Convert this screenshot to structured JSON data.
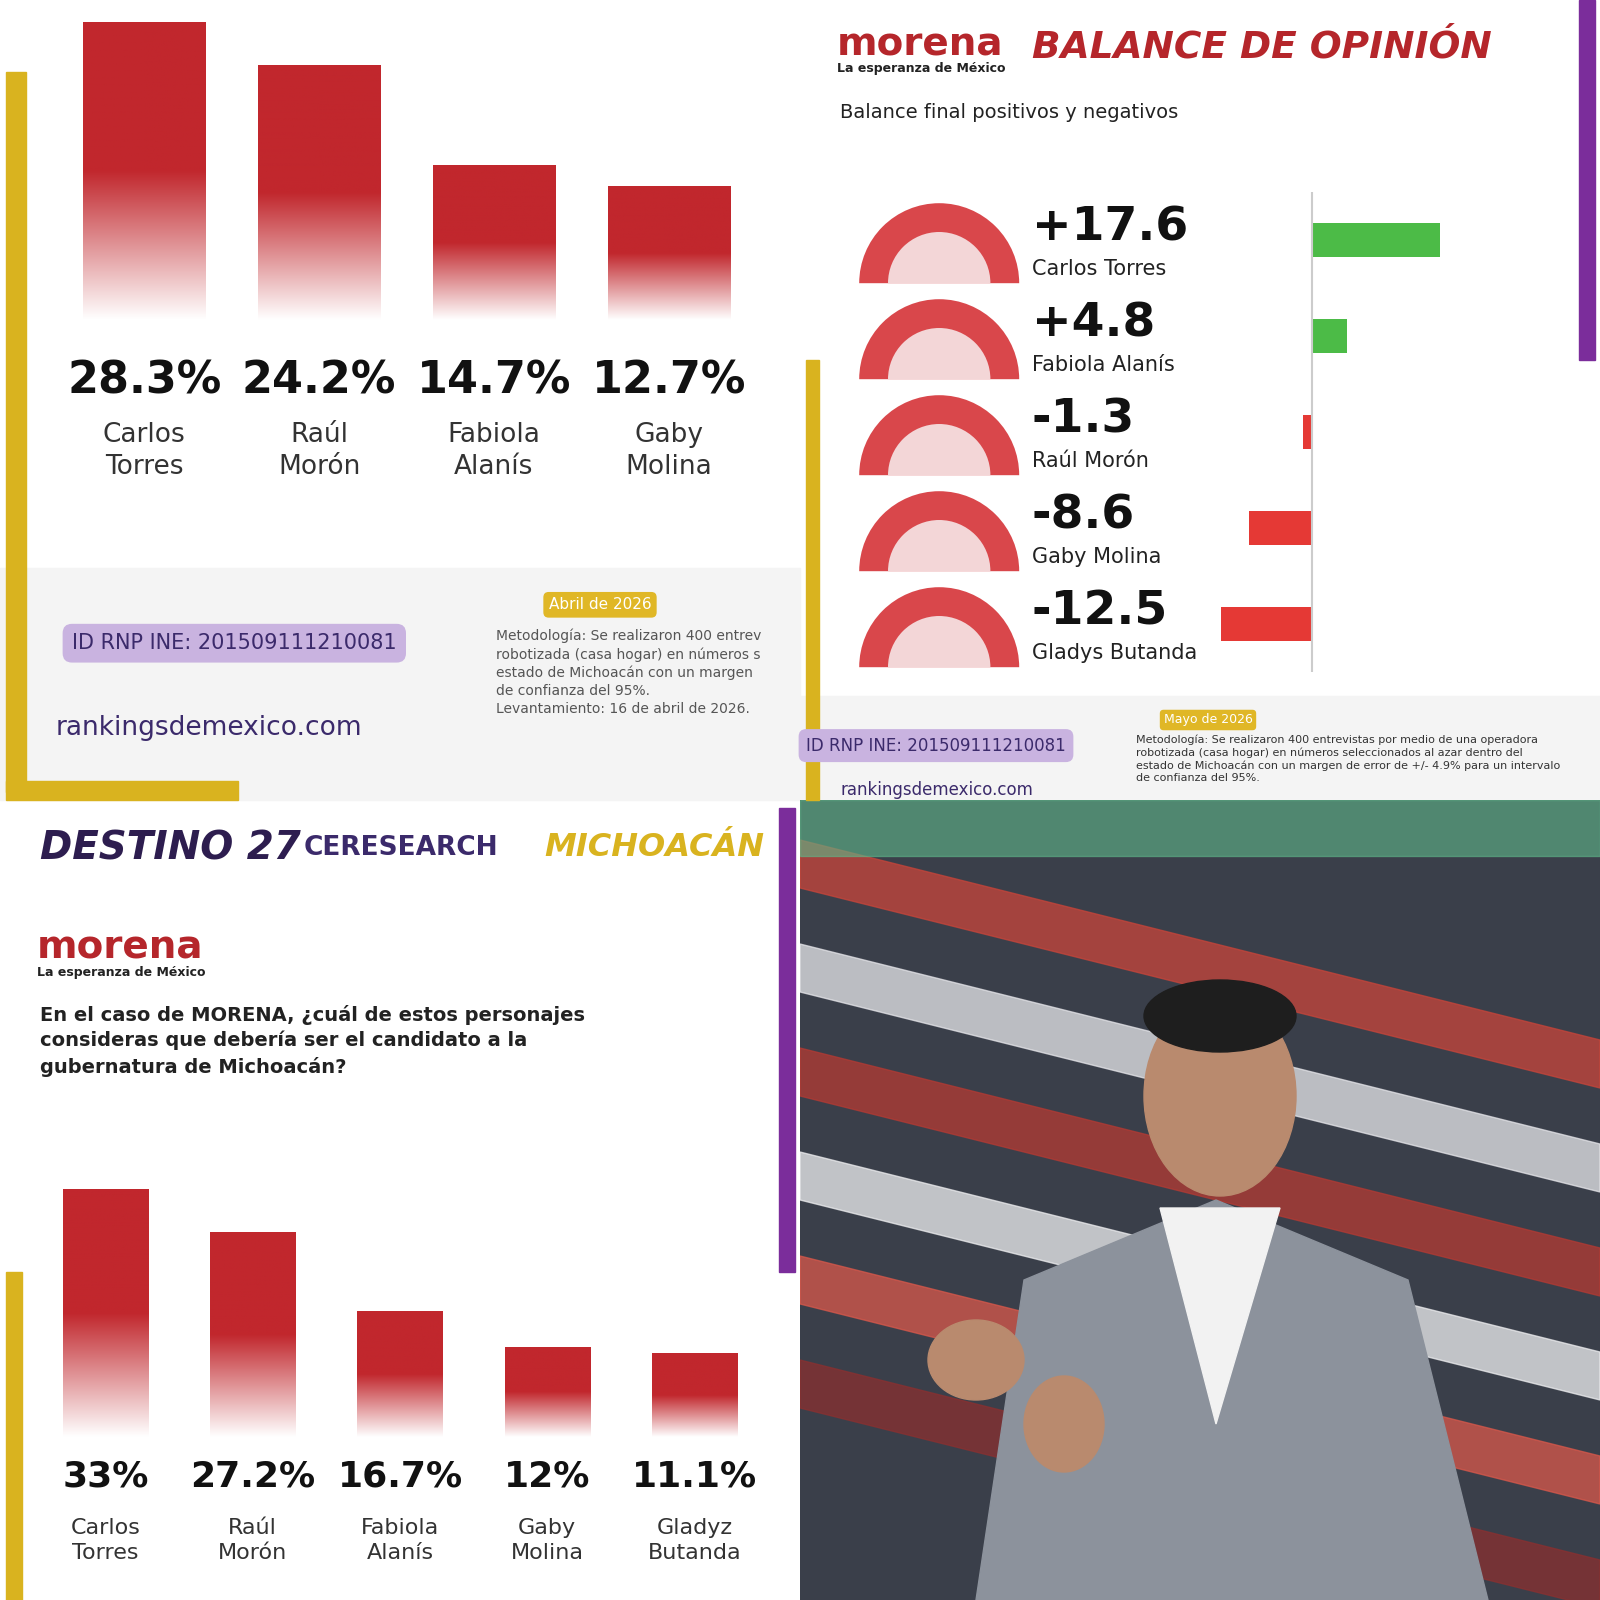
{
  "chart_data": [
    {
      "type": "bar",
      "categories": [
        "Carlos Torres",
        "Raúl Morón",
        "Fabiola Alanís",
        "Gaby Molina"
      ],
      "values": [
        28.3,
        24.2,
        14.7,
        12.7
      ],
      "value_labels": [
        "28.3%",
        "24.2%",
        "14.7%",
        "12.7%"
      ],
      "color": "#c1272d",
      "data_labels": true,
      "tick_labels": false,
      "date": "Abril de 2026",
      "id": "ID RNP INE: 201509111210081",
      "source": "rankingsdemexico.com",
      "methodology": "Metodología: Se realizaron 400 entrev\nrobotizada (casa hogar) en números s\nestado de Michoacán con un margen\nde confianza del 95%.\nLevantamiento: 16 de abril de 2026."
    },
    {
      "type": "bar",
      "orientation": "horizontal",
      "title": "BALANCE DE OPINIÓN",
      "subtitle": "Balance final positivos y negativos",
      "logo": "morena",
      "logo_tagline": "La esperanza de México",
      "categories": [
        "Carlos Torres",
        "Fabiola Alanís",
        "Raúl Morón",
        "Gaby Molina",
        "Gladys Butanda"
      ],
      "values": [
        17.6,
        4.8,
        -1.3,
        -8.6,
        -12.5
      ],
      "value_labels": [
        "+17.6",
        "+4.8",
        "-1.3",
        "-8.6",
        "-12.5"
      ],
      "colors": [
        "#4cbb47",
        "#4cbb47",
        "#e53935",
        "#e53935",
        "#e53935"
      ],
      "data_labels": true,
      "tick_labels": false,
      "date": "Mayo de 2026",
      "id": "ID RNP INE: 201509111210081",
      "source": "rankingsdemexico.com",
      "methodology": "Metodología: Se realizaron 400 entrevistas por medio de una operadora\nrobotizada (casa hogar) en números seleccionados al azar dentro del\nestado de Michoacán con un margen de error de +/- 4.9% para un intervalo\nde confianza del 95%."
    },
    {
      "type": "bar",
      "header": [
        "DESTINO 27",
        "CERESEARCH",
        "MICHOACÁN"
      ],
      "logo": "morena",
      "logo_tagline": "La esperanza de México",
      "title": "En el caso de MORENA, ¿cuál de estos personajes\nconsideras que debería ser el candidato a la\ngubernatura de Michoacán?",
      "categories": [
        "Carlos Torres",
        "Raúl Morón",
        "Fabiola Alanís",
        "Gaby Molina",
        "Gladyz Butanda"
      ],
      "values": [
        33,
        27.2,
        16.7,
        12,
        11.1
      ],
      "value_labels": [
        "33%",
        "27.2%",
        "16.7%",
        "12%",
        "11.1%"
      ],
      "color": "#c1272d",
      "data_labels": true,
      "tick_labels": false
    }
  ]
}
